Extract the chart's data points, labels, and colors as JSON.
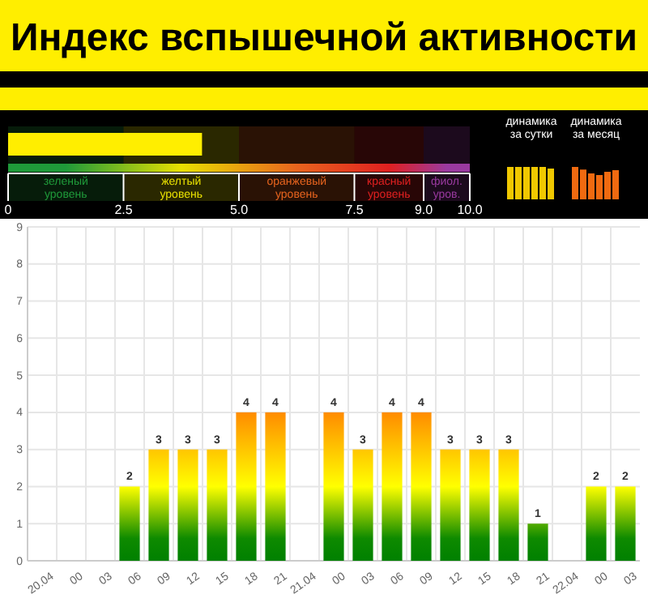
{
  "chart_data": [
    {
      "type": "bar",
      "orientation": "horizontal",
      "title": "Индекс вспышечной активности",
      "categories": [
        null
      ],
      "values": [
        4.2
      ],
      "color": "#ffee00",
      "xlim": [
        0,
        10
      ],
      "xticks": [
        0,
        {
          "value": 2.5,
          "label": "2.5"
        },
        {
          "value": 5,
          "label": "5.0"
        },
        {
          "value": 7.5,
          "label": "7.5"
        },
        {
          "value": 9,
          "label": "9.0"
        },
        {
          "value": 10,
          "label": "10.0"
        }
      ],
      "bands": [
        {
          "axis": "x",
          "from": 0,
          "to": 2.5,
          "label": "зеленый уровень",
          "color": "#1f9a3a"
        },
        {
          "axis": "x",
          "from": 2.5,
          "to": 5,
          "label": "желтый уровень",
          "color": "#e8e000"
        },
        {
          "axis": "x",
          "from": 5,
          "to": 7.5,
          "label": "оранжевый уровень",
          "color": "#e8641e"
        },
        {
          "axis": "x",
          "from": 7.5,
          "to": 9,
          "label": "красный уровень",
          "color": "#e02020"
        },
        {
          "axis": "x",
          "from": 9,
          "to": 10,
          "label": "фиол. уров.",
          "color": "#9a3aa0"
        }
      ],
      "annotations": [
        "динамика за сутки",
        "динамика за месяц"
      ]
    },
    {
      "type": "bar",
      "categories": [
        "20.04",
        "00",
        "03",
        "06",
        "09",
        "12",
        "15",
        "18",
        "21",
        "21.04",
        "00",
        "03",
        "06",
        "09",
        "12",
        "15",
        "18",
        "21",
        "22.04",
        "00",
        "03"
      ],
      "values": [
        null,
        null,
        null,
        2,
        3,
        3,
        3,
        4,
        4,
        null,
        4,
        3,
        4,
        4,
        3,
        3,
        3,
        1,
        null,
        2,
        2
      ],
      "ylim": [
        0,
        9
      ],
      "yticks": [
        0,
        1,
        2,
        3,
        4,
        5,
        6,
        7,
        8,
        9
      ],
      "grid": true,
      "data_labels": true
    }
  ]
}
